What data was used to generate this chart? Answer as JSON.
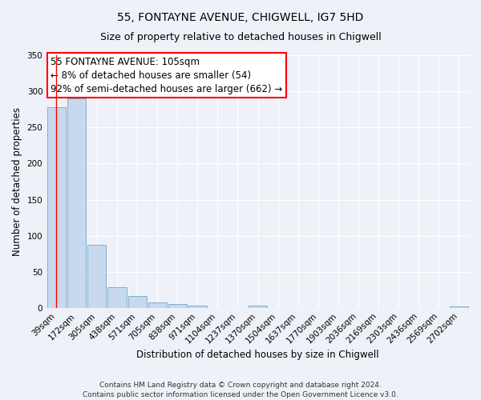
{
  "title": "55, FONTAYNE AVENUE, CHIGWELL, IG7 5HD",
  "subtitle": "Size of property relative to detached houses in Chigwell",
  "xlabel": "Distribution of detached houses by size in Chigwell",
  "ylabel": "Number of detached properties",
  "bar_labels": [
    "39sqm",
    "172sqm",
    "305sqm",
    "438sqm",
    "571sqm",
    "705sqm",
    "838sqm",
    "971sqm",
    "1104sqm",
    "1237sqm",
    "1370sqm",
    "1504sqm",
    "1637sqm",
    "1770sqm",
    "1903sqm",
    "2036sqm",
    "2169sqm",
    "2303sqm",
    "2436sqm",
    "2569sqm",
    "2702sqm"
  ],
  "bar_values": [
    278,
    290,
    87,
    29,
    17,
    8,
    6,
    3,
    0,
    0,
    3,
    0,
    0,
    0,
    0,
    0,
    0,
    0,
    0,
    0,
    2
  ],
  "bar_color": "#c8d9ee",
  "bar_edge_color": "#7aafd4",
  "ylim": [
    0,
    350
  ],
  "yticks": [
    0,
    50,
    100,
    150,
    200,
    250,
    300,
    350
  ],
  "annotation_line1": "55 FONTAYNE AVENUE: 105sqm",
  "annotation_line2": "← 8% of detached houses are smaller (54)",
  "annotation_line3": "92% of semi-detached houses are larger (662) →",
  "background_color": "#eef2f8",
  "grid_color": "#ffffff",
  "footer_line1": "Contains HM Land Registry data © Crown copyright and database right 2024.",
  "footer_line2": "Contains public sector information licensed under the Open Government Licence v3.0.",
  "title_fontsize": 10,
  "subtitle_fontsize": 9,
  "axis_label_fontsize": 8.5,
  "tick_fontsize": 7.5,
  "annotation_fontsize": 8.5,
  "footer_fontsize": 6.5
}
